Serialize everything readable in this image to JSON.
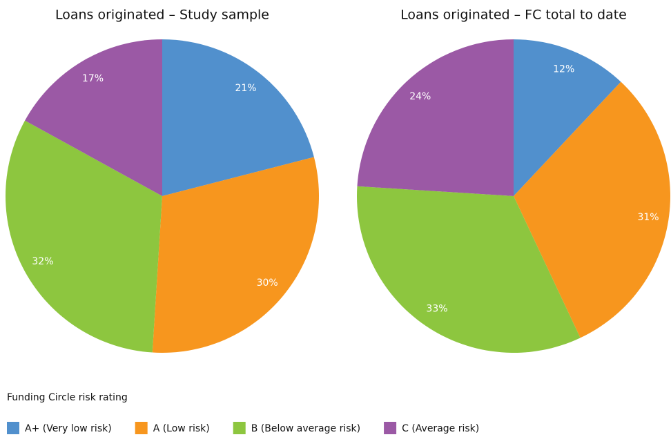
{
  "chart_data": [
    {
      "type": "pie",
      "title": "Loans originated – Study sample",
      "values": [
        21,
        30,
        32,
        17
      ],
      "value_labels": [
        "21%",
        "30%",
        "32%",
        "17%"
      ]
    },
    {
      "type": "pie",
      "title": "Loans originated – FC total to date",
      "values": [
        12,
        31,
        33,
        24
      ],
      "value_labels": [
        "12%",
        "31%",
        "33%",
        "24%"
      ]
    }
  ],
  "legend": {
    "title": "Funding Circle risk rating",
    "categories": [
      "A+ (Very low risk)",
      "A (Low risk)",
      "B (Below average risk)",
      "C (Average risk)"
    ],
    "colors": [
      "#5190cd",
      "#f7961e",
      "#8dc63f",
      "#9b59a5"
    ]
  }
}
